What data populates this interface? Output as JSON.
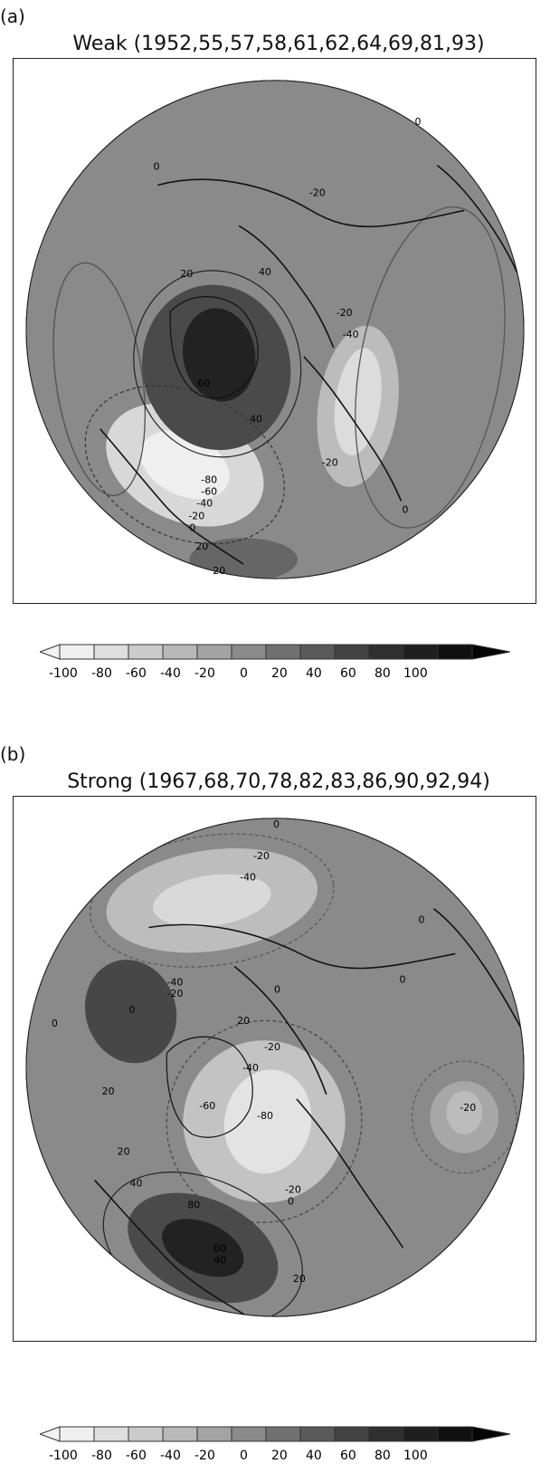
{
  "panels": [
    {
      "tag": "(a)",
      "title": "Weak (1952,55,57,58,61,62,64,69,81,93)",
      "contour_labels": [
        "0",
        "0",
        "-20",
        "20",
        "40",
        "-20",
        "-40",
        "60",
        "40",
        "-80",
        "-60",
        "-40",
        "-20",
        "0",
        "-20",
        "0",
        "20",
        "20"
      ],
      "colors": {
        "disk_base": "#8a8a8a",
        "positive_strong": "#2b2b2b",
        "positive_mid": "#4c4c4c",
        "negative_mid": "#b8b8b8",
        "negative_strong": "#dadada"
      }
    },
    {
      "tag": "(b)",
      "title": "Strong (1967,68,70,78,82,83,86,90,92,94)",
      "contour_labels": [
        "0",
        "-20",
        "-40",
        "0",
        "0",
        "-40",
        "-20",
        "0",
        "0",
        "20",
        "0",
        "20",
        "-20",
        "-40",
        "-60",
        "-80",
        "20",
        "-20",
        "40",
        "-20",
        "0",
        "80",
        "60",
        "40",
        "20"
      ],
      "colors": {
        "disk_base": "#8a8a8a",
        "positive_strong": "#2b2b2b",
        "positive_mid": "#4c4c4c",
        "negative_mid": "#b8b8b8",
        "negative_strong": "#dadada"
      }
    }
  ],
  "colorbar": {
    "ticks": [
      "-100",
      "-80",
      "-60",
      "-40",
      "-20",
      "0",
      "20",
      "40",
      "60",
      "80",
      "100"
    ],
    "fills": [
      "#efefef",
      "#dedede",
      "#cbcbcb",
      "#b8b8b8",
      "#a3a3a3",
      "#8a8a8a",
      "#717171",
      "#5a5a5a",
      "#434343",
      "#2f2f2f",
      "#1f1f1f",
      "#101010"
    ]
  }
}
